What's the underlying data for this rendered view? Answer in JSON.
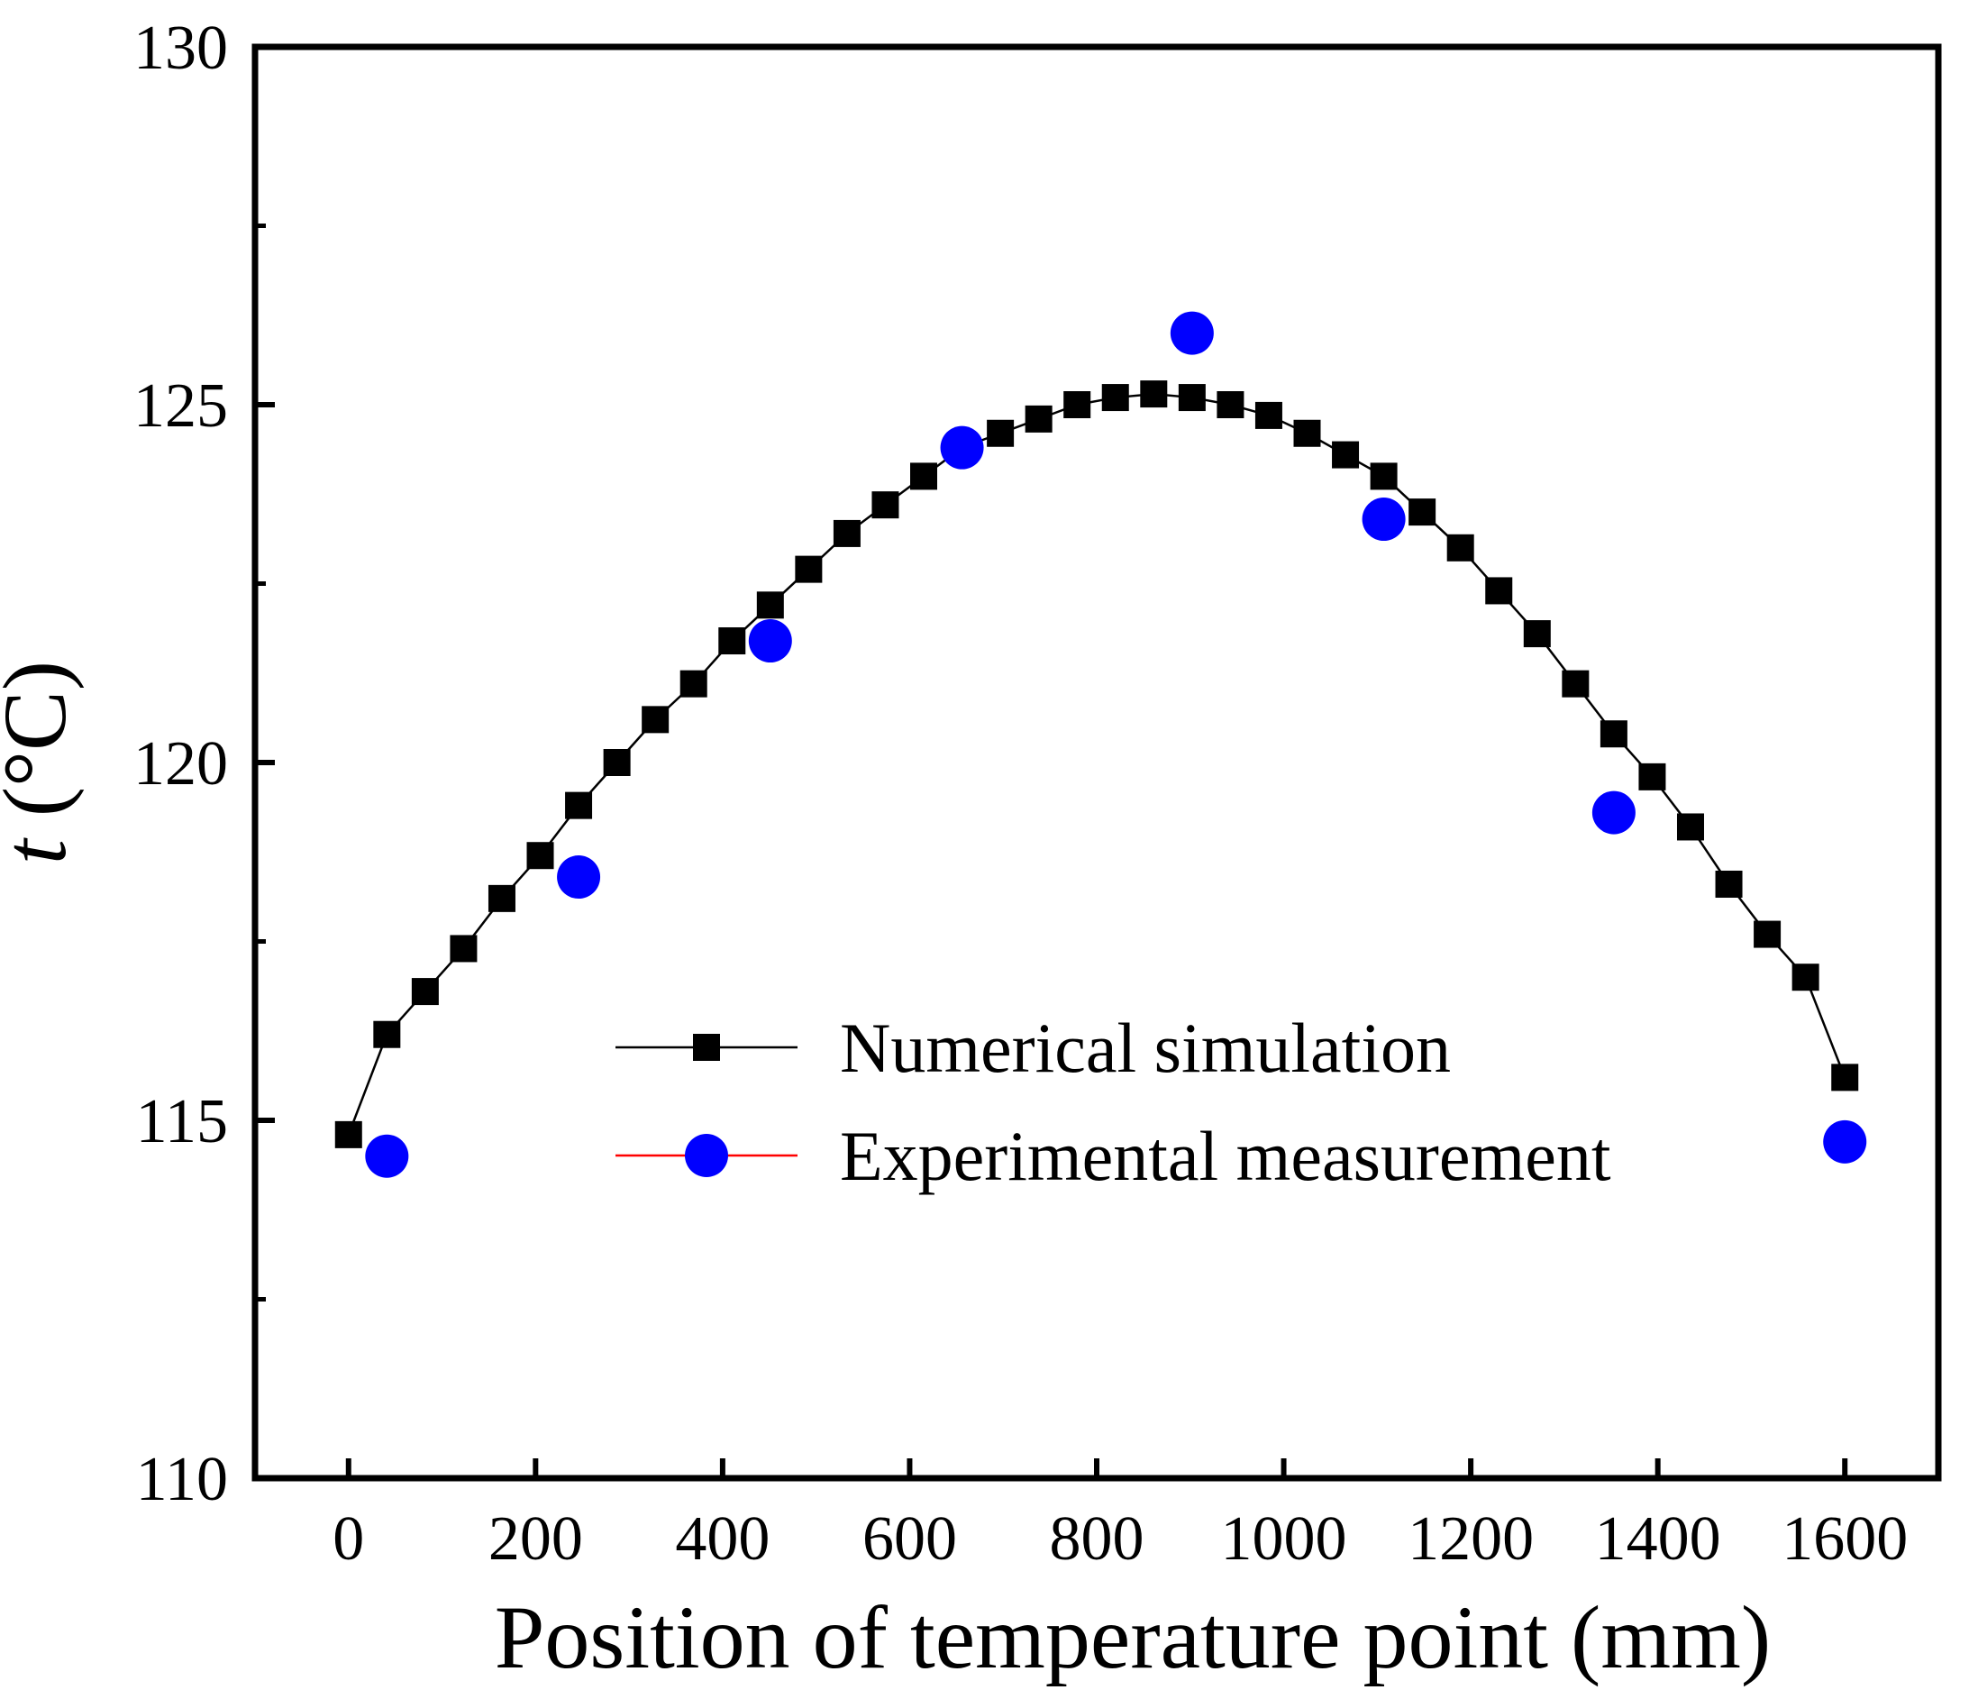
{
  "chart_data": {
    "type": "line",
    "title": "",
    "xlabel": "Position of temperature point (mm)",
    "ylabel_var": "t",
    "ylabel_unit": " (°C)",
    "xlim": [
      -100,
      1700
    ],
    "ylim": [
      110,
      130
    ],
    "xticks": [
      0,
      200,
      400,
      600,
      800,
      1000,
      1200,
      1400,
      1600
    ],
    "yticks": [
      110,
      115,
      120,
      125,
      130
    ],
    "y_minor_ticks": [
      112.5,
      117.5,
      122.5,
      127.5
    ],
    "legend_position": "center-right",
    "series": [
      {
        "name": "Numerical simulation",
        "marker": "square",
        "color": "#000000",
        "line_color": "#000000",
        "x": [
          0,
          41,
          82,
          123,
          164,
          205,
          246,
          287,
          328,
          369,
          410,
          451,
          492,
          533,
          574,
          615,
          656,
          697,
          738,
          779,
          820,
          861,
          902,
          943,
          984,
          1025,
          1066,
          1107,
          1148,
          1189,
          1230,
          1271,
          1312,
          1353,
          1394,
          1435,
          1476,
          1517,
          1558,
          1600
        ],
        "y": [
          114.8,
          116.2,
          116.8,
          117.4,
          118.1,
          118.7,
          119.4,
          120.0,
          120.6,
          121.1,
          121.7,
          122.2,
          122.7,
          123.2,
          123.6,
          124.0,
          124.4,
          124.6,
          124.8,
          125.0,
          125.1,
          125.15,
          125.1,
          125.0,
          124.85,
          124.6,
          124.3,
          124.0,
          123.5,
          123.0,
          122.4,
          121.8,
          121.1,
          120.4,
          119.8,
          119.1,
          118.3,
          117.6,
          117.0,
          115.6
        ]
      },
      {
        "name": "Experimental measurement",
        "marker": "circle",
        "color": "#0000ff",
        "line_color": "#ff0000",
        "x": [
          41,
          246,
          451,
          656,
          902,
          1107,
          1353,
          1600
        ],
        "y": [
          114.5,
          118.4,
          121.7,
          124.4,
          126.0,
          123.4,
          119.3,
          114.7
        ]
      }
    ]
  }
}
